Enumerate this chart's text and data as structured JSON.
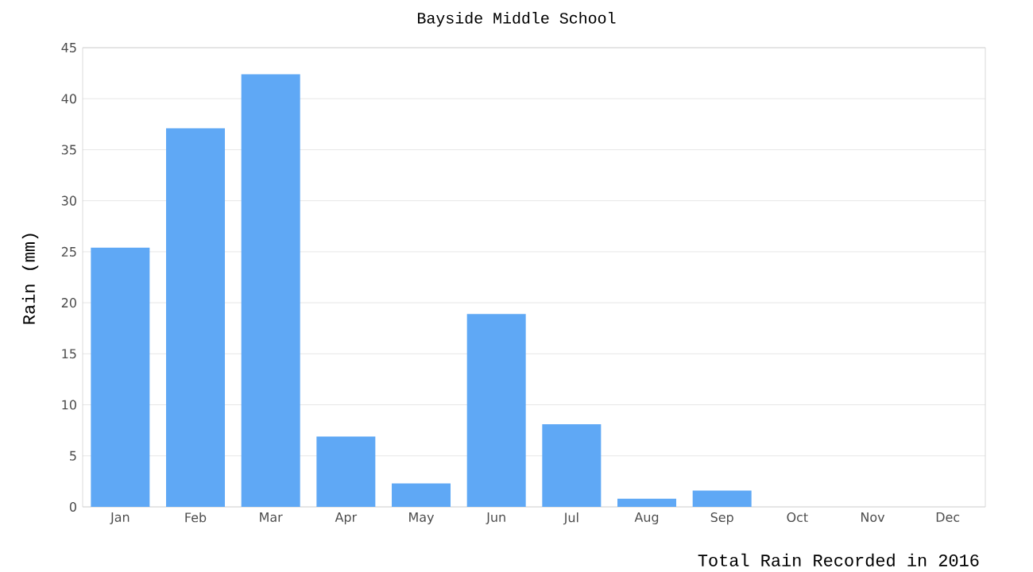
{
  "chart_data": {
    "type": "bar",
    "title": "Bayside Middle School",
    "xlabel": "Total Rain Recorded in 2016",
    "ylabel": "Rain (mm)",
    "categories": [
      "Jan",
      "Feb",
      "Mar",
      "Apr",
      "May",
      "Jun",
      "Jul",
      "Aug",
      "Sep",
      "Oct",
      "Nov",
      "Dec"
    ],
    "values": [
      25.4,
      37.1,
      42.4,
      6.9,
      2.3,
      18.9,
      8.1,
      0.8,
      1.6,
      0,
      0,
      0
    ],
    "color": "#5fa8f5",
    "ylim": [
      0,
      45
    ],
    "yticks": [
      0,
      5,
      10,
      15,
      20,
      25,
      30,
      35,
      40,
      45
    ],
    "grid": "y"
  }
}
